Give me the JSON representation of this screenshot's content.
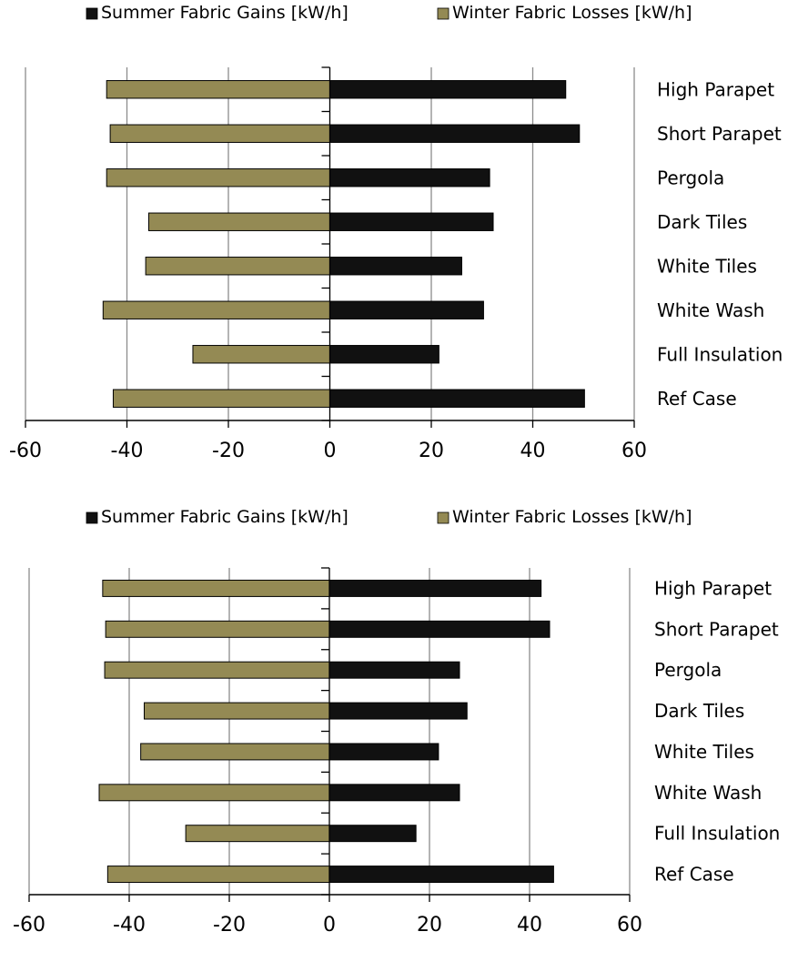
{
  "chart_data": [
    {
      "type": "bar",
      "orientation": "horizontal",
      "categories": [
        "High Parapet",
        "Short Parapet",
        "Pergola",
        "Dark Tiles",
        "White Tiles",
        "White Wash",
        "Full Insulation",
        "Ref Case"
      ],
      "series": [
        {
          "name": "Summer Fabric Gains [kW/h]",
          "color": "#111111",
          "values": [
            46.5,
            49.2,
            31.5,
            32.2,
            26.0,
            30.3,
            21.5,
            50.2
          ]
        },
        {
          "name": "Winter Fabric Losses [kW/h]",
          "color": "#948A54",
          "values": [
            -44.0,
            -43.3,
            -44.0,
            -35.7,
            -36.3,
            -44.7,
            -27.0,
            -42.7
          ]
        }
      ],
      "xlim": [
        -60,
        60
      ],
      "xticks": [
        "-60",
        "-40",
        "-20",
        "0",
        "20",
        "40",
        "60"
      ],
      "xgrid": true,
      "legend_position": "top"
    },
    {
      "type": "bar",
      "orientation": "horizontal",
      "categories": [
        "High Parapet",
        "Short Parapet",
        "Pergola",
        "Dark Tiles",
        "White Tiles",
        "White Wash",
        "Full Insulation",
        "Ref Case"
      ],
      "series": [
        {
          "name": "Summer Fabric Gains [kW/h]",
          "color": "#111111",
          "values": [
            42.3,
            44.0,
            26.0,
            27.5,
            21.8,
            26.0,
            17.3,
            44.8
          ]
        },
        {
          "name": "Winter Fabric Losses [kW/h]",
          "color": "#948A54",
          "values": [
            -45.3,
            -44.7,
            -44.9,
            -37.0,
            -37.7,
            -46.0,
            -28.7,
            -44.3
          ]
        }
      ],
      "xlim": [
        -60,
        60
      ],
      "xticks": [
        "-60",
        "-40",
        "-20",
        "0",
        "20",
        "40",
        "60"
      ],
      "xgrid": true,
      "legend_position": "top"
    }
  ]
}
